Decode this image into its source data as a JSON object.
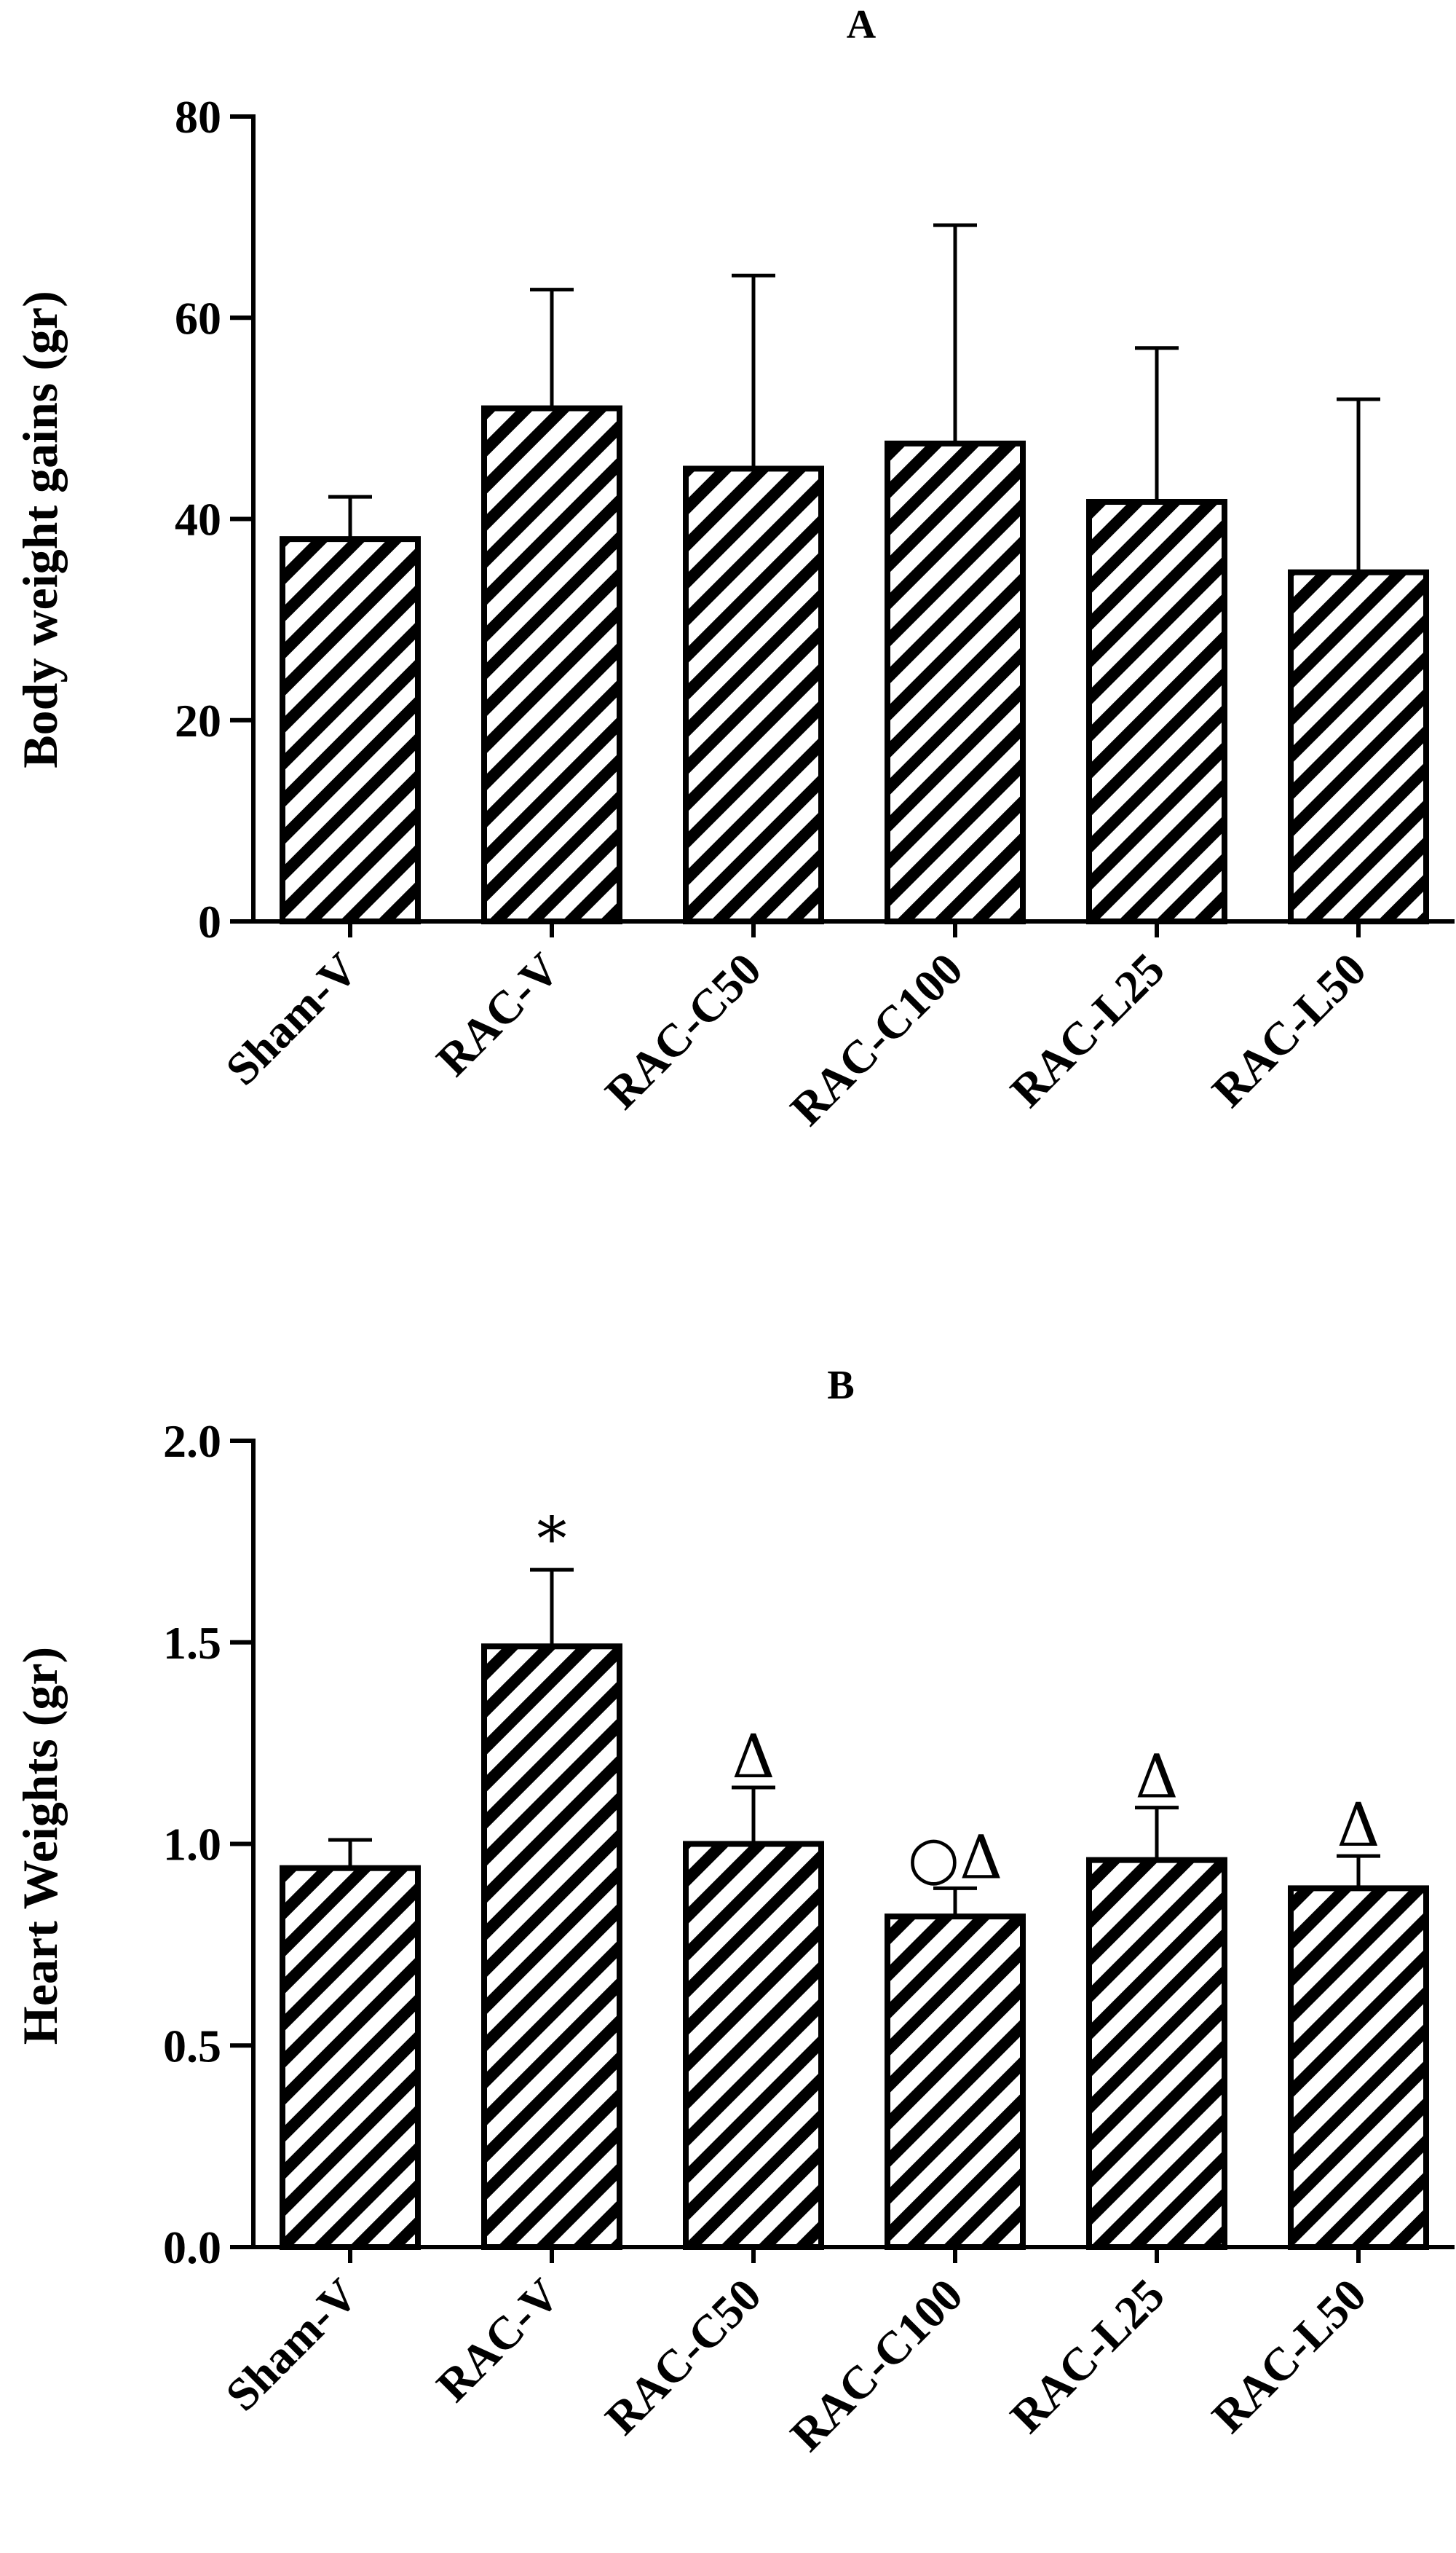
{
  "chart_data": [
    {
      "type": "bar",
      "title": "A",
      "xlabel": "",
      "ylabel": "Body weight gains (gr)",
      "ylim": [
        0,
        80
      ],
      "yticks": [
        0,
        20,
        40,
        60,
        80
      ],
      "ytick_labels": [
        "0",
        "20",
        "40",
        "60",
        "80"
      ],
      "categories": [
        "Sham-V",
        "RAC-V",
        "RAC-C50",
        "RAC-C100",
        "RAC-L25",
        "RAC-L50"
      ],
      "values": [
        38,
        51,
        45,
        47.5,
        41.7,
        34.7
      ],
      "errors": [
        4.2,
        11.8,
        19.2,
        21.7,
        15.3,
        17.2
      ],
      "annotations": [
        "",
        "",
        "",
        "",
        "",
        ""
      ],
      "fill": "diagonal-hatch",
      "grid": false
    },
    {
      "type": "bar",
      "title": "B",
      "xlabel": "",
      "ylabel": "Heart Weights (gr)",
      "ylim": [
        0,
        2.0
      ],
      "yticks": [
        0,
        0.5,
        1.0,
        1.5,
        2.0
      ],
      "ytick_labels": [
        "0.0",
        "0.5",
        "1.0",
        "1.5",
        "2.0"
      ],
      "categories": [
        "Sham-V",
        "RAC-V",
        "RAC-C50",
        "RAC-C100",
        "RAC-L25",
        "RAC-L50"
      ],
      "values": [
        0.94,
        1.49,
        1.0,
        0.82,
        0.96,
        0.89
      ],
      "errors": [
        0.07,
        0.19,
        0.14,
        0.07,
        0.13,
        0.08
      ],
      "annotations": [
        "",
        "*",
        "Δ",
        "○Δ",
        "Δ",
        "Δ"
      ],
      "fill": "diagonal-hatch",
      "grid": false
    }
  ]
}
